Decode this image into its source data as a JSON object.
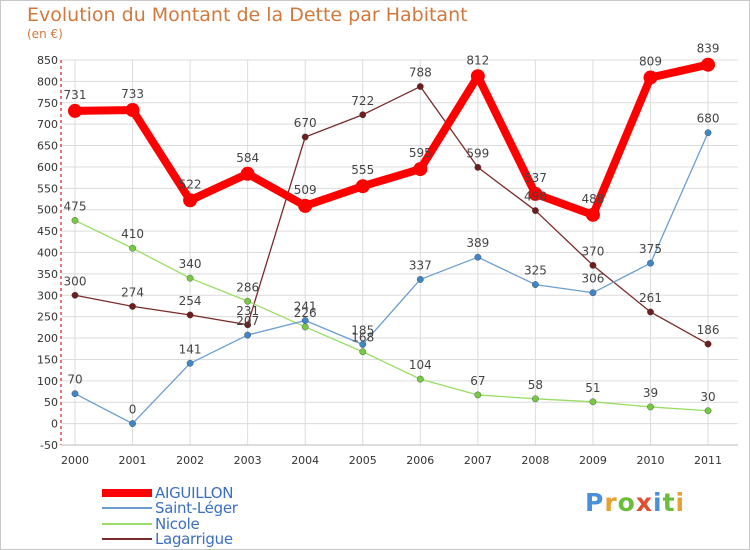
{
  "header": {
    "title": "Evolution du Montant de la Dette par Habitant",
    "subtitle": "(en €)"
  },
  "logo": {
    "text": "Proxiti",
    "letter_colors": [
      "#4a90d9",
      "#e8a030",
      "#6cbd3c",
      "#e05030",
      "#4a90d9",
      "#6cbd3c",
      "#e8a030"
    ]
  },
  "chart_data": {
    "type": "line",
    "title": "Evolution du Montant de la Dette par Habitant",
    "subtitle": "(en €)",
    "xlabel": "",
    "ylabel": "",
    "x": [
      "2000",
      "2001",
      "2002",
      "2003",
      "2004",
      "2005",
      "2006",
      "2007",
      "2008",
      "2009",
      "2010",
      "2011"
    ],
    "ylim": [
      -50,
      850
    ],
    "yticks": [
      -50,
      0,
      50,
      100,
      150,
      200,
      250,
      300,
      350,
      400,
      450,
      500,
      550,
      600,
      650,
      700,
      750,
      800,
      850
    ],
    "grid": true,
    "legend_position": "bottom-left",
    "series": [
      {
        "name": "Lagarrigue",
        "color": "#7a2a2a",
        "dot_color": "#6e1e1e",
        "width": 1.3,
        "values": [
          300,
          274,
          254,
          231,
          670,
          722,
          788,
          599,
          498,
          370,
          261,
          186
        ]
      },
      {
        "name": "Nicole",
        "color": "#99dd66",
        "dot_color": "#77c944",
        "width": 1.3,
        "values": [
          475,
          410,
          340,
          286,
          226,
          168,
          104,
          67,
          58,
          51,
          39,
          30
        ]
      },
      {
        "name": "Saint-Léger",
        "color": "#6c9ed0",
        "dot_color": "#3f86c8",
        "width": 1.3,
        "values": [
          70,
          0,
          141,
          207,
          241,
          185,
          337,
          389,
          325,
          306,
          375,
          680
        ]
      },
      {
        "name": "AIGUILLON",
        "color": "#ff0000",
        "dot_color": "#ff0000",
        "width": 8,
        "values": [
          731,
          733,
          522,
          584,
          509,
          555,
          595,
          812,
          537,
          488,
          809,
          839
        ]
      }
    ],
    "legend_order": [
      "AIGUILLON",
      "Saint-Léger",
      "Nicole",
      "Lagarrigue"
    ]
  }
}
